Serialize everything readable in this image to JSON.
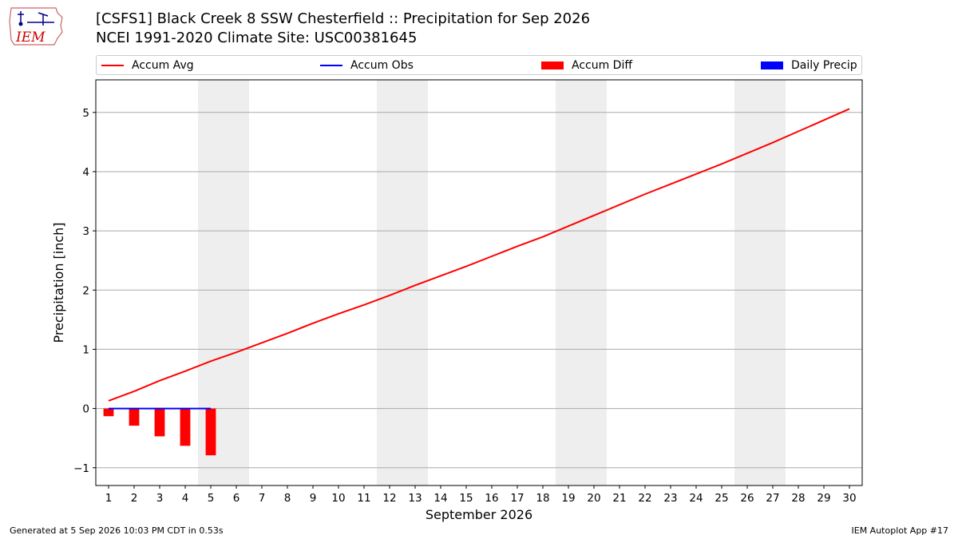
{
  "header": {
    "title_line1": "[CSFS1] Black Creek 8 SSW Chesterfield :: Precipitation for Sep 2026",
    "title_line2": "NCEI 1991-2020 Climate Site: USC00381645",
    "logo_text": "IEM"
  },
  "footer": {
    "generated": "Generated at 5 Sep 2026 10:03 PM CDT in 0.53s",
    "app": "IEM Autoplot App #17"
  },
  "colors": {
    "avg": "#ff0000",
    "obs": "#0000ff",
    "diff": "#ff0000",
    "daily": "#0000ff",
    "weekend": "#eeeeee",
    "grid": "#aaaaaa"
  },
  "chart_data": {
    "type": "line",
    "xlabel": "September 2026",
    "ylabel": "Precipitation [inch]",
    "xlim": [
      1,
      30
    ],
    "ylim": [
      -1.3,
      5.55
    ],
    "y_ticks": [
      -1,
      0,
      1,
      2,
      3,
      4,
      5
    ],
    "x_ticks": [
      1,
      2,
      3,
      4,
      5,
      6,
      7,
      8,
      9,
      10,
      11,
      12,
      13,
      14,
      15,
      16,
      17,
      18,
      19,
      20,
      21,
      22,
      23,
      24,
      25,
      26,
      27,
      28,
      29,
      30
    ],
    "grid": "horizontal",
    "legend_position": "top",
    "legend": [
      "Accum Avg",
      "Accum Obs",
      "Accum Diff",
      "Daily Precip"
    ],
    "weekend_days": [
      5,
      6,
      12,
      13,
      19,
      20,
      26,
      27
    ],
    "series": [
      {
        "name": "Accum Avg",
        "type": "line",
        "x": [
          1,
          2,
          3,
          4,
          5,
          6,
          7,
          8,
          9,
          10,
          11,
          12,
          13,
          14,
          15,
          16,
          17,
          18,
          19,
          20,
          21,
          22,
          23,
          24,
          25,
          26,
          27,
          28,
          29,
          30
        ],
        "values": [
          0.13,
          0.29,
          0.47,
          0.63,
          0.8,
          0.95,
          1.11,
          1.27,
          1.44,
          1.6,
          1.75,
          1.91,
          2.08,
          2.24,
          2.4,
          2.57,
          2.74,
          2.9,
          3.08,
          3.26,
          3.44,
          3.62,
          3.79,
          3.96,
          4.13,
          4.31,
          4.49,
          4.68,
          4.87,
          5.06
        ]
      },
      {
        "name": "Accum Obs",
        "type": "line",
        "x": [
          1,
          2,
          3,
          4,
          5
        ],
        "values": [
          0,
          0,
          0,
          0,
          0
        ]
      },
      {
        "name": "Accum Diff",
        "type": "bar",
        "x": [
          1,
          2,
          3,
          4,
          5
        ],
        "values": [
          -0.13,
          -0.29,
          -0.47,
          -0.63,
          -0.79
        ]
      },
      {
        "name": "Daily Precip",
        "type": "bar",
        "x": [
          1,
          2,
          3,
          4,
          5
        ],
        "values": [
          0,
          0,
          0,
          0,
          0
        ]
      }
    ]
  }
}
